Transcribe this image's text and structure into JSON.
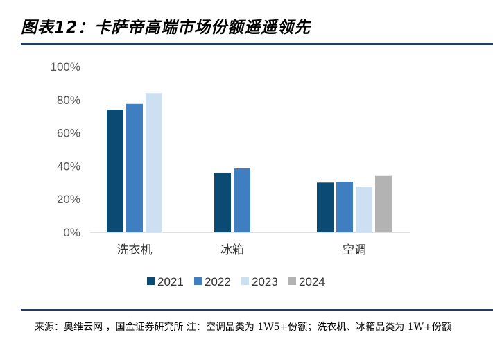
{
  "title": "图表12：卡萨帝高端市场份额遥遥领先",
  "source_note": "来源：奥维云网 ，国金证券研究所 注：空调品类为 1W5+份额；洗衣机、冰箱品类为 1W+份额",
  "chart_data": {
    "type": "bar",
    "categories": [
      "洗衣机",
      "冰箱",
      "空调"
    ],
    "series": [
      {
        "name": "2021",
        "color": "#0b4a72",
        "values": [
          74,
          36,
          30
        ]
      },
      {
        "name": "2022",
        "color": "#3f7fc1",
        "values": [
          77.5,
          38.5,
          30.5
        ]
      },
      {
        "name": "2023",
        "color": "#cde0f1",
        "values": [
          84,
          null,
          27.5
        ]
      },
      {
        "name": "2024",
        "color": "#b3b3b3",
        "values": [
          null,
          null,
          34
        ]
      }
    ],
    "ylim": [
      0,
      100
    ],
    "yticks": [
      0,
      20,
      40,
      60,
      80,
      100
    ],
    "ytick_labels": [
      "0%",
      "20%",
      "40%",
      "60%",
      "80%",
      "100%"
    ],
    "legend_position": "bottom",
    "grid": false
  }
}
